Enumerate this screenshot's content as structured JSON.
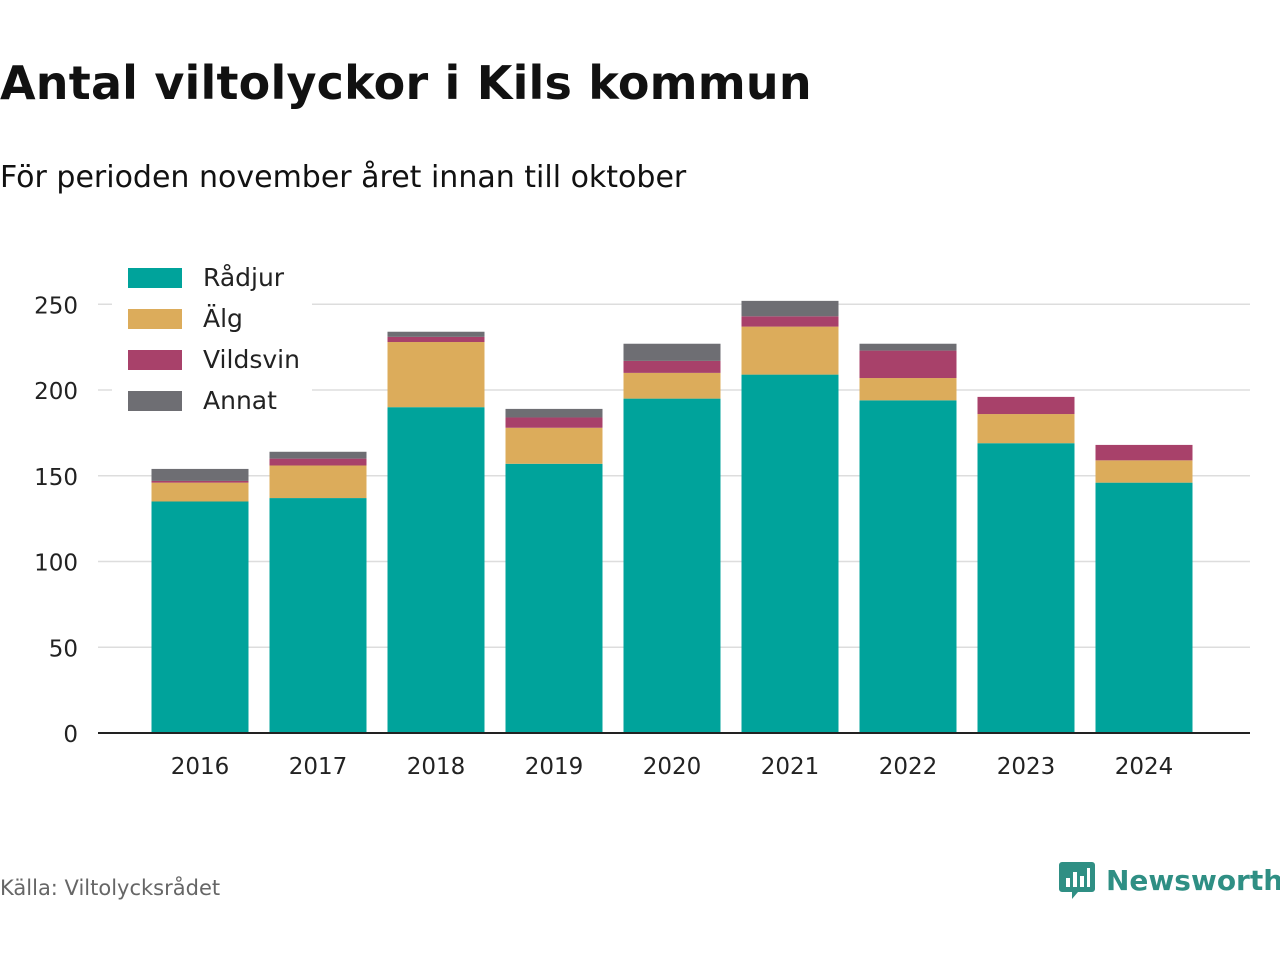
{
  "header": {
    "title": "Antal viltolyckor i Kils kommun",
    "subtitle": "För perioden november året innan till oktober"
  },
  "footer": {
    "source": "Källa: Viltolycksrådet",
    "brand": "Newsworthy",
    "brand_color": "#2f8f84"
  },
  "chart_data": {
    "type": "bar",
    "stacked": true,
    "categories": [
      "2016",
      "2017",
      "2018",
      "2019",
      "2020",
      "2021",
      "2022",
      "2023",
      "2024"
    ],
    "series": [
      {
        "name": "Rådjur",
        "color": "#00a39b",
        "values": [
          135,
          137,
          190,
          157,
          195,
          209,
          194,
          169,
          146
        ]
      },
      {
        "name": "Älg",
        "color": "#dcac5b",
        "values": [
          11,
          19,
          38,
          21,
          15,
          28,
          13,
          17,
          13
        ]
      },
      {
        "name": "Vildsvin",
        "color": "#a8416a",
        "values": [
          1,
          4,
          3,
          6,
          7,
          6,
          16,
          10,
          9
        ]
      },
      {
        "name": "Annat",
        "color": "#6e6e73",
        "values": [
          7,
          4,
          3,
          5,
          10,
          9,
          4,
          0,
          0
        ]
      }
    ],
    "ylim": [
      0,
      270
    ],
    "yticks": [
      0,
      50,
      100,
      150,
      200,
      250
    ],
    "grid": true,
    "legend": "top-left",
    "xlabel": "",
    "ylabel": ""
  }
}
